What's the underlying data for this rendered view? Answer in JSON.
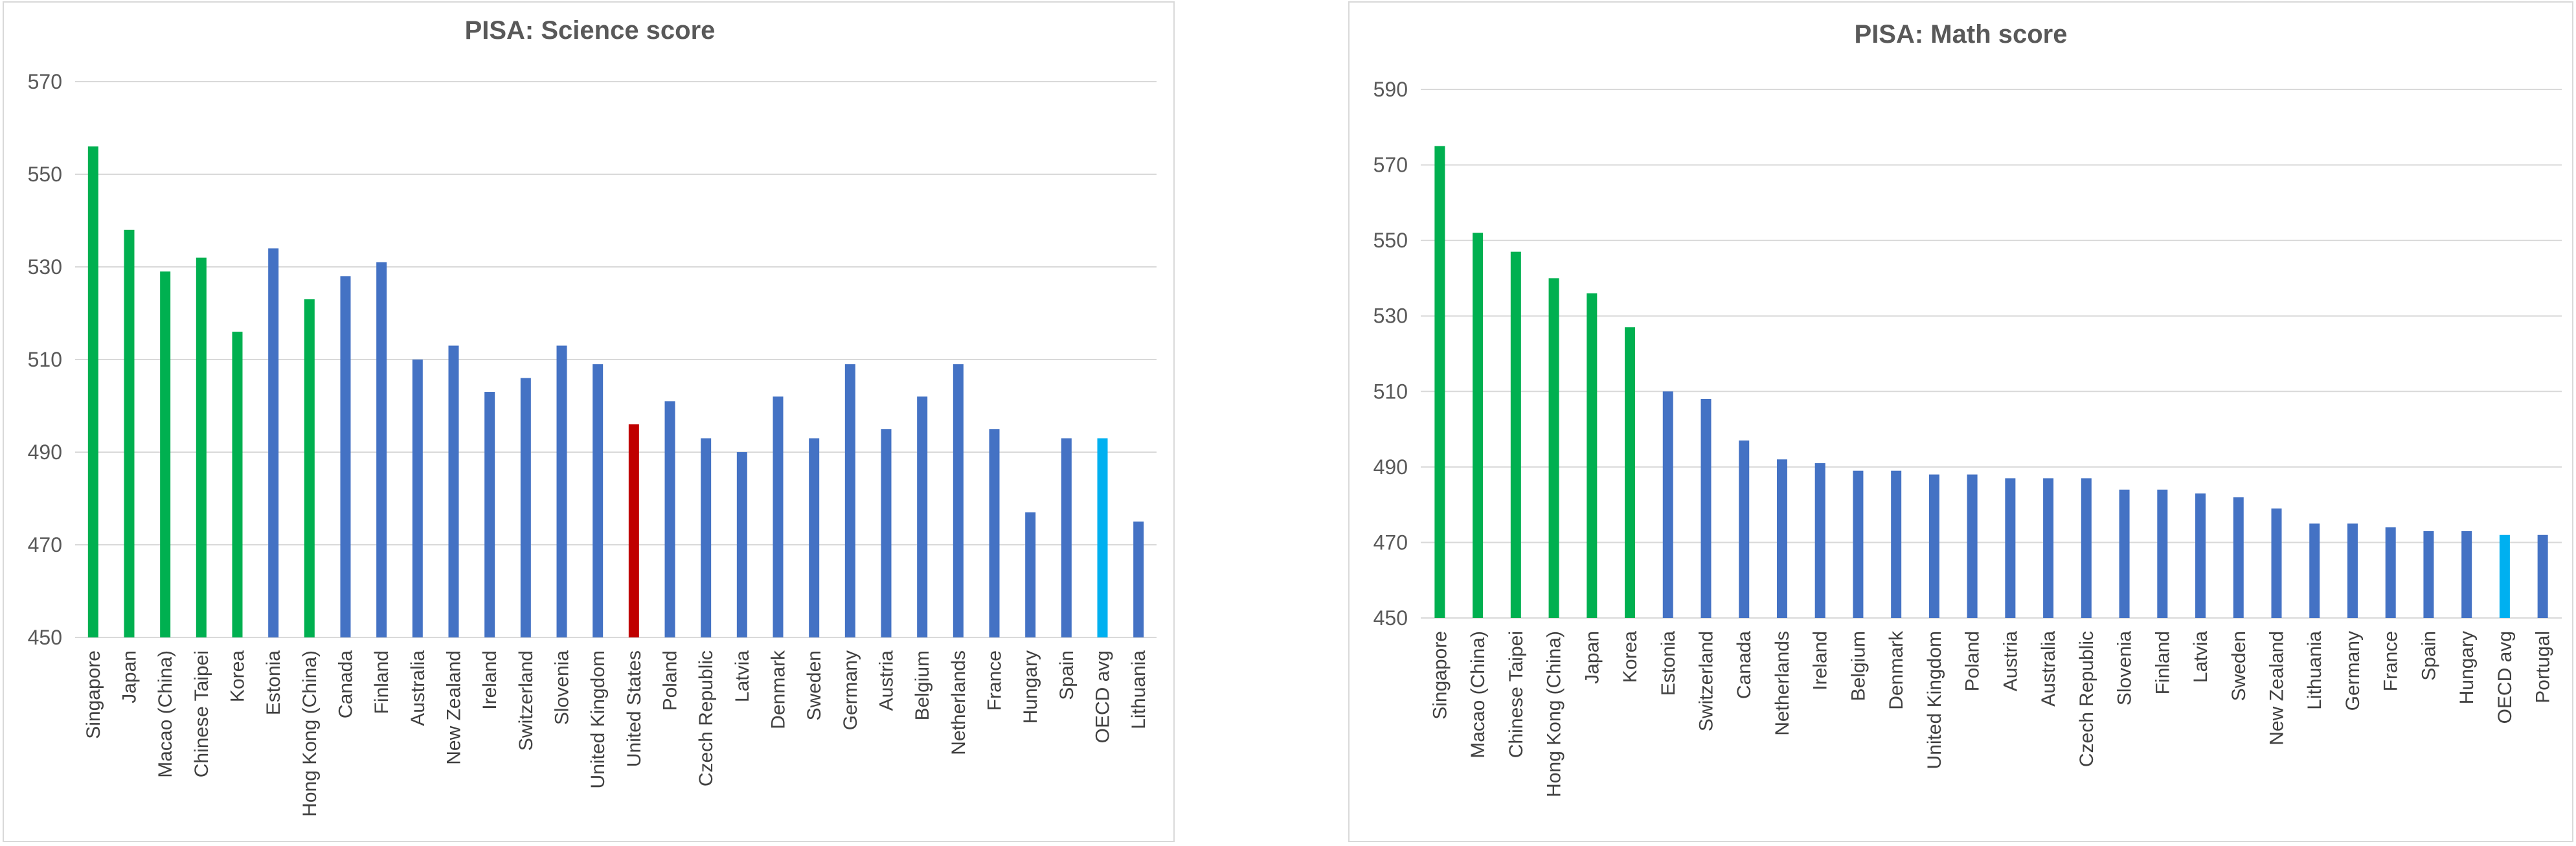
{
  "colors": {
    "green": "#00B050",
    "blue": "#4472C4",
    "red": "#C00000",
    "light_blue": "#00B0F0"
  },
  "chart_data": [
    {
      "type": "bar",
      "title": "PISA: Science score",
      "xlabel": "",
      "ylabel": "",
      "ylim": [
        450,
        570
      ],
      "yticks": [
        "450",
        "470",
        "490",
        "510",
        "530",
        "550",
        "570"
      ],
      "grid": true,
      "categories": [
        "Singapore",
        "Japan",
        "Macao (China)",
        "Chinese Taipei",
        "Korea",
        "Estonia",
        "Hong Kong (China)",
        "Canada",
        "Finland",
        "Australia",
        "New Zealand",
        "Ireland",
        "Switzerland",
        "Slovenia",
        "United Kingdom",
        "United States",
        "Poland",
        "Czech Republic",
        "Latvia",
        "Denmark",
        "Sweden",
        "Germany",
        "Austria",
        "Belgium",
        "Netherlands",
        "France",
        "Hungary",
        "Spain",
        "OECD avg",
        "Lithuania"
      ],
      "values": [
        556,
        538,
        529,
        532,
        516,
        534,
        523,
        528,
        531,
        510,
        513,
        503,
        506,
        513,
        509,
        496,
        501,
        493,
        490,
        502,
        493,
        509,
        495,
        502,
        509,
        495,
        477,
        493,
        493,
        475
      ],
      "colors": [
        "green",
        "green",
        "green",
        "green",
        "green",
        "blue",
        "green",
        "blue",
        "blue",
        "blue",
        "blue",
        "blue",
        "blue",
        "blue",
        "blue",
        "red",
        "blue",
        "blue",
        "blue",
        "blue",
        "blue",
        "blue",
        "blue",
        "blue",
        "blue",
        "blue",
        "blue",
        "blue",
        "light_blue",
        "blue"
      ]
    },
    {
      "type": "bar",
      "title": "PISA: Math score",
      "xlabel": "",
      "ylabel": "",
      "ylim": [
        450,
        590
      ],
      "yticks": [
        "450",
        "470",
        "490",
        "510",
        "530",
        "550",
        "570",
        "590"
      ],
      "grid": true,
      "categories": [
        "Singapore",
        "Macao (China)",
        "Chinese Taipei",
        "Hong Kong (China)",
        "Japan",
        "Korea",
        "Estonia",
        "Switzerland",
        "Canada",
        "Netherlands",
        "Ireland",
        "Belgium",
        "Denmark",
        "United Kingdom",
        "Poland",
        "Austria",
        "Australia",
        "Czech Republic",
        "Slovenia",
        "Finland",
        "Latvia",
        "Sweden",
        "New Zealand",
        "Lithuania",
        "Germany",
        "France",
        "Spain",
        "Hungary",
        "OECD avg",
        "Portugal"
      ],
      "values": [
        575,
        552,
        547,
        540,
        536,
        527,
        510,
        508,
        497,
        492,
        491,
        489,
        489,
        488,
        488,
        487,
        487,
        487,
        484,
        484,
        483,
        482,
        479,
        475,
        475,
        474,
        473,
        473,
        472,
        472
      ],
      "colors": [
        "green",
        "green",
        "green",
        "green",
        "green",
        "green",
        "blue",
        "blue",
        "blue",
        "blue",
        "blue",
        "blue",
        "blue",
        "blue",
        "blue",
        "blue",
        "blue",
        "blue",
        "blue",
        "blue",
        "blue",
        "blue",
        "blue",
        "blue",
        "blue",
        "blue",
        "blue",
        "blue",
        "light_blue",
        "blue"
      ]
    }
  ]
}
